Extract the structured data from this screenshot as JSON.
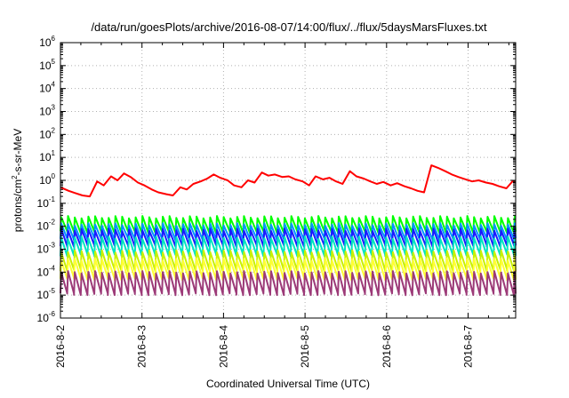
{
  "chart_data": {
    "type": "line",
    "title": "/data/run/goesPlots/archive/2016-08-07/14:00/flux/../flux/5daysMarsFluxes.txt",
    "xlabel": "Coordinated Universal Time (UTC)",
    "ylabel": "protons/cm²-s-sr-MeV",
    "ylabel_parts": {
      "pre": "protons/cm",
      "sup": "2",
      "post": "-s-sr-MeV"
    },
    "yscale": "log",
    "ylim_exp": [
      -6,
      6
    ],
    "y_ticks": [
      {
        "base": "10",
        "exp": "-6"
      },
      {
        "base": "10",
        "exp": "-5"
      },
      {
        "base": "10",
        "exp": "-4"
      },
      {
        "base": "10",
        "exp": "-3"
      },
      {
        "base": "10",
        "exp": "-2"
      },
      {
        "base": "10",
        "exp": "-1"
      },
      {
        "base": "10",
        "exp": "0"
      },
      {
        "base": "10",
        "exp": "1"
      },
      {
        "base": "10",
        "exp": "2"
      },
      {
        "base": "10",
        "exp": "3"
      },
      {
        "base": "10",
        "exp": "4"
      },
      {
        "base": "10",
        "exp": "5"
      },
      {
        "base": "10",
        "exp": "6"
      }
    ],
    "xlim": [
      "2016-08-02",
      "2016-08-07 14:00"
    ],
    "x_ticks": [
      "2016-8-2",
      "2016-8-3",
      "2016-8-4",
      "2016-8-5",
      "2016-8-6",
      "2016-8-7"
    ],
    "grid": true,
    "legend": "none",
    "red_series": {
      "color": "#ff0000",
      "x_days": [
        0.0,
        0.1,
        0.18,
        0.27,
        0.36,
        0.45,
        0.53,
        0.62,
        0.7,
        0.78,
        0.86,
        0.95,
        1.03,
        1.12,
        1.2,
        1.3,
        1.38,
        1.47,
        1.55,
        1.63,
        1.72,
        1.8,
        1.88,
        1.96,
        2.05,
        2.13,
        2.22,
        2.3,
        2.38,
        2.47,
        2.55,
        2.63,
        2.72,
        2.8,
        2.88,
        2.97,
        3.05,
        3.13,
        3.22,
        3.3,
        3.38,
        3.46,
        3.55,
        3.63,
        3.72,
        3.8,
        3.88,
        3.96,
        4.05,
        4.13,
        4.22,
        4.3,
        4.38,
        4.46,
        4.55,
        4.63,
        4.72,
        4.8,
        4.88,
        4.97,
        5.05,
        5.13,
        5.22,
        5.3,
        5.38,
        5.47,
        5.55,
        5.58
      ],
      "values": [
        0.5,
        0.35,
        0.28,
        0.22,
        0.2,
        0.9,
        0.6,
        1.5,
        1.0,
        2.0,
        1.4,
        0.8,
        0.6,
        0.4,
        0.3,
        0.25,
        0.22,
        0.5,
        0.4,
        0.7,
        0.9,
        1.2,
        1.8,
        1.3,
        1.0,
        0.6,
        0.5,
        1.0,
        0.8,
        2.2,
        1.6,
        1.8,
        1.4,
        1.5,
        1.1,
        0.9,
        0.6,
        1.5,
        1.1,
        1.3,
        0.9,
        0.7,
        2.5,
        1.5,
        1.2,
        0.9,
        0.7,
        0.85,
        0.6,
        0.75,
        0.55,
        0.45,
        0.35,
        0.3,
        4.5,
        3.5,
        2.5,
        1.8,
        1.4,
        1.1,
        0.9,
        1.0,
        0.8,
        0.7,
        0.55,
        0.45,
        0.95,
        0.8
      ]
    },
    "sawtooth_series": [
      {
        "color": "#00ff00",
        "peak": 0.025,
        "low": 0.0055
      },
      {
        "color": "#0095ff",
        "peak": 0.012,
        "low": 0.0027
      },
      {
        "color": "#1a1aff",
        "peak": 0.007,
        "low": 0.0014
      },
      {
        "color": "#00e5c0",
        "peak": 0.0032,
        "low": 0.00055
      },
      {
        "color": "#c8f000",
        "peak": 0.0008,
        "low": 0.00012
      },
      {
        "color": "#ffff33",
        "peak": 0.00035,
        "low": 5e-05
      },
      {
        "color": "#9c3a78",
        "peak": 0.0001,
        "low": 1.1e-05
      }
    ],
    "sawtooth_period_days": 0.083
  }
}
